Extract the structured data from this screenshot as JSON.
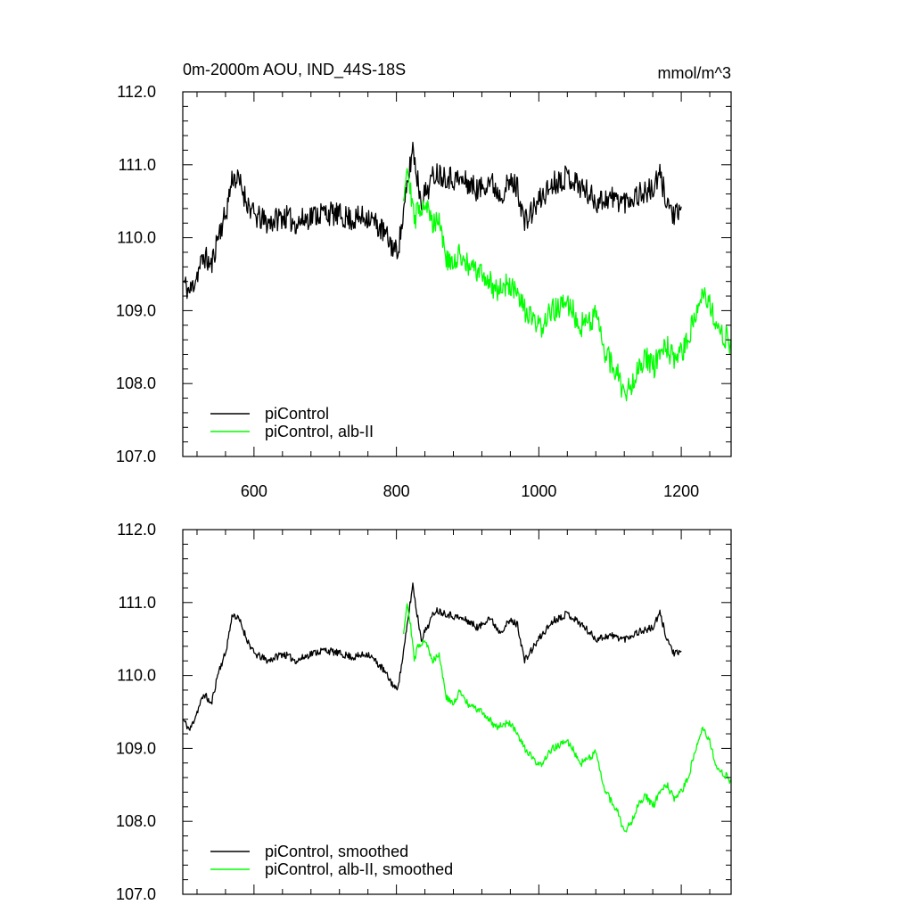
{
  "figure": {
    "title": "0m-2000m AOU, IND_44S-18S",
    "units": "mmol/m^3"
  },
  "chart_data": [
    {
      "type": "line",
      "panel": "top",
      "title": "0m-2000m AOU, IND_44S-18S",
      "units": "mmol/m^3",
      "xlim": [
        500,
        1270
      ],
      "ylim": [
        107.0,
        112.0
      ],
      "xticks": [
        600,
        800,
        1000,
        1200
      ],
      "xtick_labels": [
        "600",
        "800",
        "1000",
        "1200"
      ],
      "yticks": [
        107.0,
        108.0,
        109.0,
        110.0,
        111.0,
        112.0
      ],
      "ytick_labels": [
        "107.0",
        "108.0",
        "109.0",
        "110.0",
        "111.0",
        "112.0"
      ],
      "legend_position": "bottom-left",
      "series": [
        {
          "name": "piControl",
          "color": "#000000",
          "noise": 0.17,
          "seed": 11,
          "x": [
            500,
            510,
            520,
            530,
            540,
            550,
            560,
            570,
            580,
            590,
            600,
            620,
            640,
            660,
            680,
            700,
            720,
            740,
            760,
            780,
            800,
            805,
            812,
            818,
            823,
            828,
            835,
            845,
            855,
            870,
            885,
            900,
            915,
            930,
            945,
            960,
            970,
            980,
            1000,
            1020,
            1040,
            1060,
            1080,
            1100,
            1120,
            1140,
            1160,
            1170,
            1180,
            1190,
            1200
          ],
          "y": [
            109.4,
            109.25,
            109.5,
            109.75,
            109.6,
            110.05,
            110.3,
            110.85,
            110.75,
            110.5,
            110.3,
            110.2,
            110.3,
            110.2,
            110.3,
            110.35,
            110.3,
            110.25,
            110.3,
            110.1,
            109.8,
            110.0,
            110.45,
            110.9,
            111.25,
            110.9,
            110.5,
            110.7,
            110.9,
            110.85,
            110.8,
            110.75,
            110.65,
            110.8,
            110.6,
            110.75,
            110.7,
            110.2,
            110.5,
            110.75,
            110.85,
            110.7,
            110.5,
            110.55,
            110.5,
            110.6,
            110.65,
            110.85,
            110.5,
            110.3,
            110.3
          ]
        },
        {
          "name": "piControl, alb-II",
          "color": "#00ff00",
          "noise": 0.17,
          "seed": 29,
          "x": [
            810,
            815,
            820,
            825,
            830,
            840,
            850,
            860,
            870,
            880,
            890,
            900,
            920,
            940,
            960,
            980,
            1000,
            1020,
            1040,
            1060,
            1080,
            1090,
            1100,
            1110,
            1120,
            1130,
            1140,
            1150,
            1160,
            1170,
            1180,
            1190,
            1200,
            1210,
            1220,
            1230,
            1240,
            1250,
            1260,
            1270
          ],
          "y": [
            110.6,
            111.0,
            110.7,
            110.2,
            110.4,
            110.5,
            110.2,
            110.3,
            109.7,
            109.6,
            109.8,
            109.6,
            109.5,
            109.3,
            109.35,
            109.0,
            108.75,
            109.0,
            109.1,
            108.8,
            108.95,
            108.5,
            108.3,
            108.15,
            107.85,
            108.0,
            108.25,
            108.35,
            108.2,
            108.4,
            108.5,
            108.3,
            108.4,
            108.6,
            109.0,
            109.3,
            109.1,
            108.7,
            108.65,
            108.55
          ]
        }
      ]
    },
    {
      "type": "line",
      "panel": "bottom",
      "xlim": [
        500,
        1270
      ],
      "ylim": [
        107.0,
        112.0
      ],
      "xticks": [
        600,
        800,
        1000,
        1200
      ],
      "yticks": [
        107.0,
        108.0,
        109.0,
        110.0,
        111.0,
        112.0
      ],
      "ytick_labels": [
        "107.0",
        "108.0",
        "109.0",
        "110.0",
        "111.0",
        "112.0"
      ],
      "legend_position": "bottom-left",
      "series": [
        {
          "name": "piControl, smoothed",
          "color": "#000000",
          "noise": 0.05,
          "seed": 11,
          "x": [
            500,
            510,
            520,
            530,
            540,
            550,
            560,
            570,
            580,
            590,
            600,
            620,
            640,
            660,
            680,
            700,
            720,
            740,
            760,
            780,
            800,
            805,
            812,
            818,
            823,
            828,
            835,
            845,
            855,
            870,
            885,
            900,
            915,
            930,
            945,
            960,
            970,
            980,
            1000,
            1020,
            1040,
            1060,
            1080,
            1100,
            1120,
            1140,
            1160,
            1170,
            1180,
            1190,
            1200
          ],
          "y": [
            109.4,
            109.25,
            109.5,
            109.75,
            109.6,
            110.05,
            110.3,
            110.85,
            110.75,
            110.5,
            110.3,
            110.2,
            110.3,
            110.2,
            110.3,
            110.35,
            110.3,
            110.25,
            110.3,
            110.1,
            109.8,
            110.0,
            110.45,
            110.9,
            111.25,
            110.9,
            110.5,
            110.7,
            110.9,
            110.85,
            110.8,
            110.75,
            110.65,
            110.8,
            110.6,
            110.75,
            110.7,
            110.2,
            110.5,
            110.75,
            110.85,
            110.7,
            110.5,
            110.55,
            110.5,
            110.6,
            110.65,
            110.85,
            110.5,
            110.3,
            110.3
          ]
        },
        {
          "name": "piControl, alb-II, smoothed",
          "color": "#00ff00",
          "noise": 0.05,
          "seed": 29,
          "x": [
            810,
            815,
            820,
            825,
            830,
            840,
            850,
            860,
            870,
            880,
            890,
            900,
            920,
            940,
            960,
            980,
            1000,
            1020,
            1040,
            1060,
            1080,
            1090,
            1100,
            1110,
            1120,
            1130,
            1140,
            1150,
            1160,
            1170,
            1180,
            1190,
            1200,
            1210,
            1220,
            1230,
            1240,
            1250,
            1260,
            1270
          ],
          "y": [
            110.6,
            111.0,
            110.7,
            110.2,
            110.4,
            110.5,
            110.2,
            110.3,
            109.7,
            109.6,
            109.8,
            109.6,
            109.5,
            109.3,
            109.35,
            109.0,
            108.75,
            109.0,
            109.1,
            108.8,
            108.95,
            108.5,
            108.3,
            108.15,
            107.85,
            108.0,
            108.25,
            108.35,
            108.2,
            108.4,
            108.5,
            108.3,
            108.4,
            108.6,
            109.0,
            109.3,
            109.1,
            108.7,
            108.65,
            108.55
          ]
        }
      ]
    }
  ]
}
